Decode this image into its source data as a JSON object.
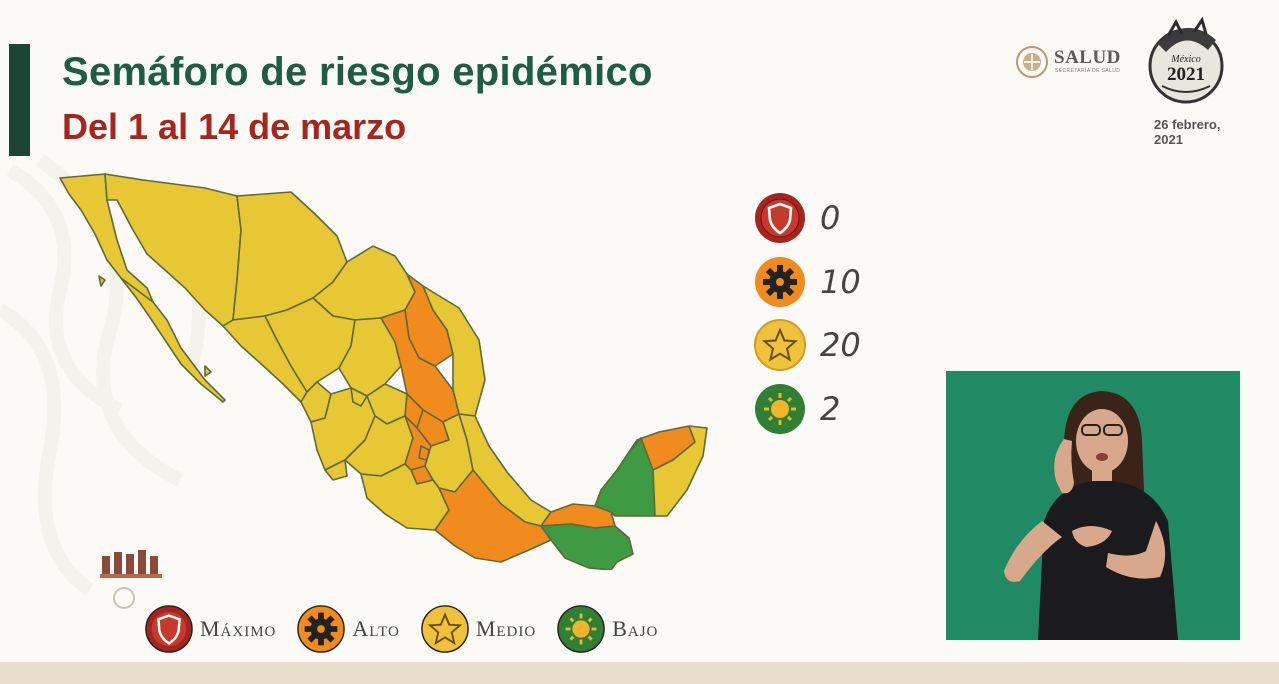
{
  "title": "Semáforo de riesgo epidémico",
  "subtitle": "Del 1 al 14 de marzo",
  "header": {
    "brand": "SALUD",
    "brand_sub": "SECRETARÍA DE SALUD",
    "seal_text_1": "México",
    "seal_text_2": "2021",
    "date": "26 febrero, 2021"
  },
  "colors": {
    "maximo": "#a6241f",
    "alto": "#f28b1e",
    "medio": "#e7c733",
    "bajo": "#3e9b43",
    "title": "#1d5c45",
    "subtitle": "#a8251d"
  },
  "counts": [
    {
      "level": "maximo",
      "icon": "shield-icon",
      "count": "0"
    },
    {
      "level": "alto",
      "icon": "gear-icon",
      "count": "10"
    },
    {
      "level": "medio",
      "icon": "star-icon",
      "count": "20"
    },
    {
      "level": "bajo",
      "icon": "sun-icon",
      "count": "2"
    }
  ],
  "legend": [
    {
      "level": "maximo",
      "icon": "shield-icon",
      "label": "Máximo"
    },
    {
      "level": "alto",
      "icon": "gear-icon",
      "label": "Alto"
    },
    {
      "level": "medio",
      "icon": "star-icon",
      "label": "Medio"
    },
    {
      "level": "bajo",
      "icon": "sun-icon",
      "label": "Bajo"
    }
  ]
}
